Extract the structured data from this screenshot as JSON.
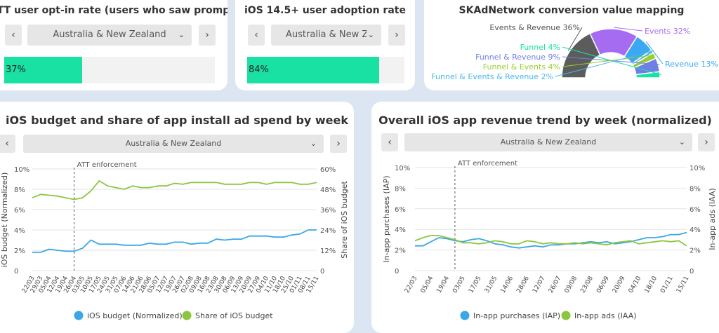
{
  "cards": {
    "att": {
      "title": "ATT user opt-in rate (users who saw prompt)",
      "region": "Australia & New Zealand",
      "value_text": "37%",
      "value": 0.37,
      "fill_color": "#19e0a3"
    },
    "ios145": {
      "title": "iOS 14.5+ user adoption rate",
      "region": "Australia & New Zeal...",
      "value_text": "84%",
      "value": 0.84,
      "fill_color": "#19e0a3"
    },
    "skad": {
      "title": "SKAdNetwork conversion value mapping",
      "labels": [
        "Events & Revenue 36%",
        "Events 32%",
        "Revenue 13%",
        "Funnel 4%",
        "Funnel & Revenue 9%",
        "Funnel & Events 4%",
        "Funnel & Events & Revenue 2%"
      ]
    },
    "budget": {
      "title": "iOS budget and share of app install ad spend by week",
      "region": "Australia & New Zealand",
      "annotation": "ATT enforcement",
      "legend": [
        "iOS budget (Normalized)",
        "Share of iOS budget"
      ]
    },
    "revenue": {
      "title": "Overall iOS app revenue trend by week (normalized)",
      "region": "Australia & New Zealand",
      "annotation": "ATT enforcement",
      "legend": [
        "In-app purchases (IAP)",
        "In-app ads (IAA)"
      ]
    }
  },
  "nav": {
    "prev": "‹",
    "next": "›",
    "chevron": "⌄"
  },
  "chart_data": [
    {
      "type": "pie",
      "variant": "semi-donut",
      "title": "SKAdNetwork conversion value mapping",
      "categories": [
        "Events & Revenue",
        "Events",
        "Revenue",
        "Funnel & Events & Revenue",
        "Funnel & Events",
        "Funnel & Revenue",
        "Funnel"
      ],
      "values": [
        36,
        32,
        13,
        2,
        4,
        9,
        4
      ],
      "colors": [
        "#5c5c5c",
        "#a56cf2",
        "#3aa8f2",
        "#49b8e8",
        "#9acd32",
        "#6f7fe6",
        "#19e0a3"
      ],
      "label_order": [
        "Events & Revenue",
        "Events",
        "Revenue",
        "Funnel",
        "Funnel & Revenue",
        "Funnel & Events",
        "Funnel & Events & Revenue"
      ]
    },
    {
      "type": "line",
      "title": "iOS budget and share of app install ad spend by week",
      "x": [
        "22/03",
        "29/03",
        "05/04",
        "12/04",
        "19/04",
        "26/04",
        "03/05",
        "10/05",
        "17/05",
        "24/05",
        "31/05",
        "07/06",
        "14/06",
        "21/06",
        "28/06",
        "05/07",
        "12/07",
        "19/07",
        "26/07",
        "02/08",
        "09/08",
        "16/08",
        "23/08",
        "30/08",
        "06/09",
        "13/09",
        "20/09",
        "27/09",
        "04/10",
        "11/10",
        "18/10",
        "25/10",
        "01/11",
        "08/11",
        "15/11"
      ],
      "ylabel": "iOS budget (Normalized)",
      "y_ticks": [
        "0",
        "2%",
        "4%",
        "6%",
        "8%",
        "10%"
      ],
      "ylim": [
        0,
        10
      ],
      "y2label": "Share of iOS budget",
      "y2_ticks": [
        "0",
        "12%",
        "24%",
        "36%",
        "48%",
        "60%"
      ],
      "y2lim": [
        0,
        60
      ],
      "annotation": {
        "x": "26/04",
        "text": "ATT enforcement"
      },
      "legend_position": "bottom",
      "series": [
        {
          "name": "iOS budget (Normalized)",
          "axis": "left",
          "color": "#3aa8e6",
          "values": [
            1.8,
            1.8,
            2.1,
            2.0,
            1.9,
            1.9,
            2.2,
            3.0,
            2.6,
            2.6,
            2.6,
            2.5,
            2.5,
            2.5,
            2.7,
            2.6,
            2.6,
            2.8,
            2.8,
            2.6,
            2.7,
            2.7,
            3.1,
            3.0,
            3.1,
            3.1,
            3.4,
            3.4,
            3.4,
            3.3,
            3.3,
            3.5,
            3.6,
            4.0,
            4.0
          ]
        },
        {
          "name": "Share of iOS budget",
          "axis": "right",
          "color": "#8cc63f",
          "values": [
            43,
            45,
            44.5,
            44,
            43,
            42,
            43,
            47,
            53,
            50,
            49,
            48,
            50,
            49,
            49,
            50,
            50,
            51.5,
            51,
            52,
            52,
            52,
            52,
            51,
            51,
            51,
            52,
            52,
            51,
            52,
            52,
            52,
            51,
            51,
            52
          ]
        }
      ]
    },
    {
      "type": "line",
      "title": "Overall iOS app revenue trend by week (normalized)",
      "x": [
        "22/03",
        "29/03",
        "05/04",
        "12/04",
        "19/04",
        "26/04",
        "03/05",
        "10/05",
        "17/05",
        "24/05",
        "31/05",
        "07/06",
        "14/06",
        "21/06",
        "28/06",
        "05/07",
        "12/07",
        "19/07",
        "26/07",
        "02/08",
        "09/08",
        "16/08",
        "23/08",
        "30/08",
        "06/09",
        "13/09",
        "20/09",
        "27/09",
        "04/10",
        "11/10",
        "18/10",
        "25/10",
        "01/11",
        "08/11",
        "15/11"
      ],
      "x_tick_labels": [
        "22/03",
        "05/04",
        "19/04",
        "03/05",
        "17/05",
        "31/05",
        "14/06",
        "28/06",
        "12/07",
        "26/07",
        "09/08",
        "23/08",
        "06/09",
        "20/09",
        "04/10",
        "18/10",
        "01/11",
        "15/11"
      ],
      "ylabel": "In-app purchases (IAP)",
      "y_ticks": [
        "0",
        "2%",
        "4%",
        "6%",
        "8%",
        "10%"
      ],
      "ylim": [
        0,
        10
      ],
      "y2label": "In-app ads (IAA)",
      "y2_ticks": [
        "0",
        "2%",
        "4%",
        "6%",
        "8%",
        "10%"
      ],
      "y2lim": [
        0,
        10
      ],
      "annotation": {
        "x": "26/04",
        "text": "ATT enforcement"
      },
      "legend_position": "bottom",
      "series": [
        {
          "name": "In-app purchases (IAP)",
          "axis": "left",
          "color": "#3aa8e6",
          "values": [
            2.4,
            2.4,
            2.8,
            3.2,
            3.1,
            2.9,
            2.8,
            3.0,
            3.1,
            2.9,
            2.6,
            2.5,
            2.3,
            2.2,
            2.3,
            2.4,
            2.3,
            2.5,
            2.5,
            2.6,
            2.6,
            2.7,
            2.8,
            2.7,
            2.8,
            2.6,
            2.7,
            2.8,
            3.0,
            3.2,
            3.2,
            3.3,
            3.5,
            3.5,
            3.7
          ]
        },
        {
          "name": "In-app ads (IAA)",
          "axis": "right",
          "color": "#8cc63f",
          "values": [
            2.9,
            3.2,
            3.4,
            3.4,
            3.2,
            3.0,
            2.7,
            2.7,
            2.6,
            2.7,
            2.9,
            2.8,
            2.6,
            2.6,
            2.9,
            2.8,
            2.6,
            2.7,
            2.6,
            2.6,
            2.7,
            2.6,
            2.7,
            2.6,
            2.5,
            2.7,
            2.8,
            2.9,
            2.6,
            2.7,
            2.8,
            2.9,
            2.8,
            2.9,
            2.4
          ]
        }
      ]
    }
  ]
}
